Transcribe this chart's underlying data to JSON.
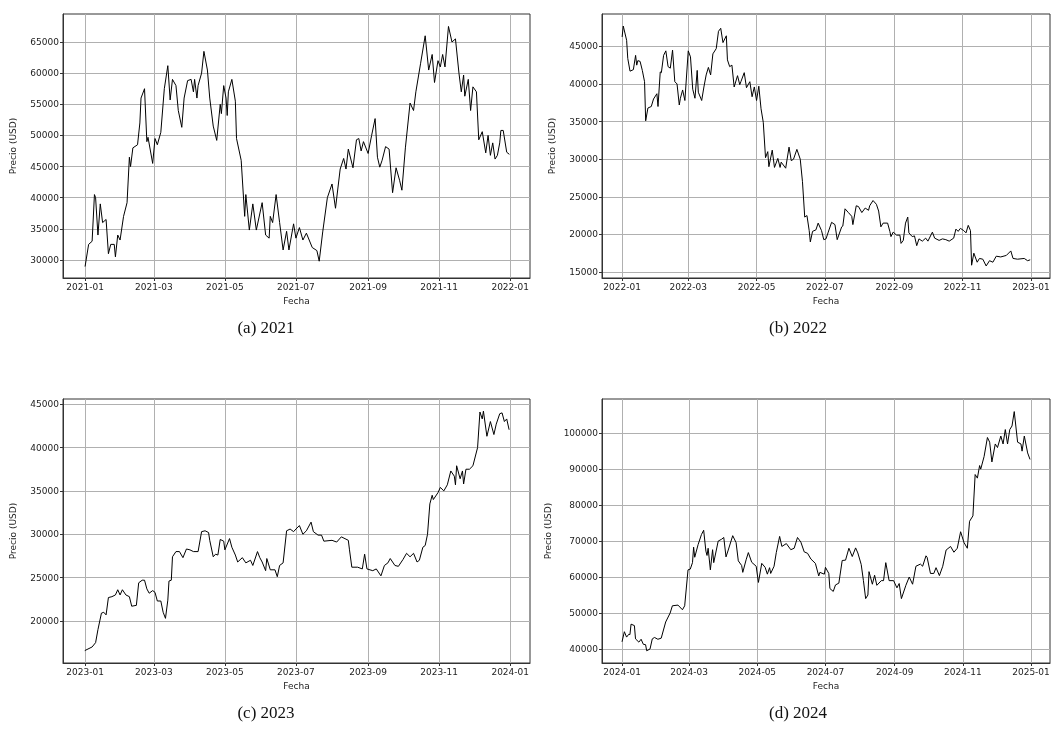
{
  "chart_data": [
    {
      "type": "line",
      "title": "(a) 2021",
      "xlabel": "Fecha",
      "ylabel": "Precio (USD)",
      "grid": true,
      "xlim": [
        "2020-12-13",
        "2022-01-18"
      ],
      "xticks": [
        "2021-01",
        "2021-03",
        "2021-05",
        "2021-07",
        "2021-09",
        "2021-11",
        "2022-01"
      ],
      "ylim": [
        27100,
        69500
      ],
      "yticks": [
        30000,
        35000,
        40000,
        45000,
        50000,
        55000,
        60000,
        65000
      ],
      "series": [
        {
          "color": "#000000",
          "x": [
            "2021-01-01",
            "2021-01-04",
            "2021-01-07",
            "2021-01-09",
            "2021-01-10",
            "2021-01-12",
            "2021-01-14",
            "2021-01-16",
            "2021-01-19",
            "2021-01-21",
            "2021-01-23",
            "2021-01-26",
            "2021-01-27",
            "2021-01-29",
            "2021-01-31",
            "2021-02-03",
            "2021-02-06",
            "2021-02-08",
            "2021-02-09",
            "2021-02-11",
            "2021-02-15",
            "2021-02-17",
            "2021-02-18",
            "2021-02-21",
            "2021-02-23",
            "2021-02-24",
            "2021-02-28",
            "2021-03-02",
            "2021-03-04",
            "2021-03-07",
            "2021-03-10",
            "2021-03-13",
            "2021-03-15",
            "2021-03-17",
            "2021-03-20",
            "2021-03-22",
            "2021-03-25",
            "2021-03-27",
            "2021-03-30",
            "2021-04-02",
            "2021-04-04",
            "2021-04-05",
            "2021-04-07",
            "2021-04-08",
            "2021-04-11",
            "2021-04-13",
            "2021-04-16",
            "2021-04-18",
            "2021-04-21",
            "2021-04-24",
            "2021-04-27",
            "2021-04-28",
            "2021-04-30",
            "2021-05-02",
            "2021-05-03",
            "2021-05-04",
            "2021-05-07",
            "2021-05-10",
            "2021-05-11",
            "2021-05-15",
            "2021-05-18",
            "2021-05-19",
            "2021-05-22",
            "2021-05-25",
            "2021-05-28",
            "2021-06-02",
            "2021-06-05",
            "2021-06-08",
            "2021-06-09",
            "2021-06-11",
            "2021-06-14",
            "2021-06-17",
            "2021-06-20",
            "2021-06-23",
            "2021-06-25",
            "2021-06-29",
            "2021-07-01",
            "2021-07-04",
            "2021-07-07",
            "2021-07-10",
            "2021-07-15",
            "2021-07-19",
            "2021-07-21",
            "2021-07-24",
            "2021-07-28",
            "2021-08-01",
            "2021-08-04",
            "2021-08-08",
            "2021-08-11",
            "2021-08-13",
            "2021-08-15",
            "2021-08-19",
            "2021-08-22",
            "2021-08-24",
            "2021-08-26",
            "2021-08-28",
            "2021-09-01",
            "2021-09-04",
            "2021-09-07",
            "2021-09-09",
            "2021-09-11",
            "2021-09-13",
            "2021-09-16",
            "2021-09-19",
            "2021-09-22",
            "2021-09-25",
            "2021-09-28",
            "2021-09-30",
            "2021-10-03",
            "2021-10-07",
            "2021-10-10",
            "2021-10-12",
            "2021-10-16",
            "2021-10-20",
            "2021-10-23",
            "2021-10-26",
            "2021-10-28",
            "2021-10-31",
            "2021-11-02",
            "2021-11-04",
            "2021-11-06",
            "2021-11-09",
            "2021-11-12",
            "2021-11-15",
            "2021-11-18",
            "2021-11-20",
            "2021-11-22",
            "2021-11-23",
            "2021-11-26",
            "2021-11-28",
            "2021-11-30",
            "2021-12-03",
            "2021-12-05",
            "2021-12-08",
            "2021-12-11",
            "2021-12-13",
            "2021-12-15",
            "2021-12-17",
            "2021-12-19",
            "2021-12-21",
            "2021-12-23",
            "2021-12-24",
            "2021-12-26",
            "2021-12-29",
            "2021-12-31"
          ],
          "values": [
            29000,
            32500,
            33000,
            40500,
            40000,
            34000,
            39000,
            36000,
            36500,
            31000,
            32500,
            32500,
            30500,
            34000,
            33200,
            37000,
            39200,
            46500,
            45000,
            48000,
            48500,
            52000,
            56000,
            57500,
            49000,
            49700,
            45500,
            49500,
            48500,
            50500,
            57500,
            61200,
            55700,
            59000,
            58000,
            54000,
            51300,
            56000,
            58800,
            59000,
            57000,
            59000,
            56000,
            58000,
            60000,
            63500,
            60500,
            56000,
            51500,
            49200,
            55000,
            53500,
            58000,
            56000,
            53200,
            57000,
            59000,
            55500,
            49500,
            46000,
            37000,
            40500,
            34800,
            39000,
            34800,
            39200,
            34000,
            33500,
            37000,
            36000,
            40500,
            36000,
            31600,
            34600,
            31600,
            35800,
            33500,
            35200,
            33200,
            34300,
            32000,
            31500,
            29800,
            34500,
            40000,
            42200,
            38300,
            44600,
            46300,
            44600,
            47800,
            44800,
            49300,
            49500,
            47500,
            49000,
            47100,
            50000,
            52700,
            46500,
            44900,
            46000,
            48200,
            47800,
            40800,
            44800,
            42800,
            41200,
            48000,
            55200,
            54000,
            57000,
            61500,
            66000,
            60500,
            63000,
            58500,
            62000,
            61000,
            63000,
            61000,
            67500,
            65000,
            65500,
            60000,
            57000,
            59700,
            56300,
            59000,
            54000,
            57800,
            57000,
            49300,
            50600,
            47200,
            50000,
            46800,
            48800,
            46200,
            46800,
            48800,
            50800,
            50800,
            47300,
            47000
          ]
        }
      ]
    },
    {
      "type": "line",
      "title": "(b) 2022",
      "xlabel": "Fecha",
      "ylabel": "Precio (USD)",
      "grid": true,
      "xlim": [
        "2021-12-14",
        "2023-01-18"
      ],
      "xticks": [
        "2022-01",
        "2022-03",
        "2022-05",
        "2022-07",
        "2022-09",
        "2022-11",
        "2023-01"
      ],
      "ylim": [
        14200,
        49300
      ],
      "yticks": [
        15000,
        20000,
        25000,
        30000,
        35000,
        40000,
        45000
      ],
      "series": [
        {
          "color": "#000000",
          "x": [
            "2022-01-01",
            "2022-01-02",
            "2022-01-05",
            "2022-01-06",
            "2022-01-08",
            "2022-01-11",
            "2022-01-13",
            "2022-01-14",
            "2022-01-15",
            "2022-01-17",
            "2022-01-19",
            "2022-01-21",
            "2022-01-22",
            "2022-01-24",
            "2022-01-27",
            "2022-01-29",
            "2022-02-01",
            "2022-02-02",
            "2022-02-04",
            "2022-02-05",
            "2022-02-07",
            "2022-02-09",
            "2022-02-11",
            "2022-02-13",
            "2022-02-15",
            "2022-02-17",
            "2022-02-19",
            "2022-02-21",
            "2022-02-22",
            "2022-02-24",
            "2022-02-26",
            "2022-03-01",
            "2022-03-03",
            "2022-03-05",
            "2022-03-07",
            "2022-03-09",
            "2022-03-10",
            "2022-03-13",
            "2022-03-15",
            "2022-03-17",
            "2022-03-19",
            "2022-03-21",
            "2022-03-23",
            "2022-03-26",
            "2022-03-28",
            "2022-03-30",
            "2022-04-01",
            "2022-04-04",
            "2022-04-05",
            "2022-04-07",
            "2022-04-09",
            "2022-04-11",
            "2022-04-14",
            "2022-04-16",
            "2022-04-17",
            "2022-04-20",
            "2022-04-22",
            "2022-04-25",
            "2022-04-27",
            "2022-04-29",
            "2022-05-01",
            "2022-05-03",
            "2022-05-05",
            "2022-05-07",
            "2022-05-09",
            "2022-05-11",
            "2022-05-12",
            "2022-05-15",
            "2022-05-17",
            "2022-05-20",
            "2022-05-22",
            "2022-05-23",
            "2022-05-27",
            "2022-05-30",
            "2022-06-01",
            "2022-06-03",
            "2022-06-06",
            "2022-06-09",
            "2022-06-11",
            "2022-06-13",
            "2022-06-15",
            "2022-06-17",
            "2022-06-18",
            "2022-06-20",
            "2022-06-23",
            "2022-06-25",
            "2022-06-28",
            "2022-06-30",
            "2022-07-02",
            "2022-07-04",
            "2022-07-07",
            "2022-07-10",
            "2022-07-12",
            "2022-07-16",
            "2022-07-17",
            "2022-07-19",
            "2022-07-22",
            "2022-07-25",
            "2022-07-26",
            "2022-07-29",
            "2022-07-31",
            "2022-08-03",
            "2022-08-06",
            "2022-08-09",
            "2022-08-10",
            "2022-08-13",
            "2022-08-16",
            "2022-08-18",
            "2022-08-20",
            "2022-08-22",
            "2022-08-26",
            "2022-08-28",
            "2022-08-29",
            "2022-08-31",
            "2022-09-03",
            "2022-09-06",
            "2022-09-07",
            "2022-09-09",
            "2022-09-11",
            "2022-09-13",
            "2022-09-14",
            "2022-09-17",
            "2022-09-19",
            "2022-09-21",
            "2022-09-23",
            "2022-09-26",
            "2022-09-29",
            "2022-10-01",
            "2022-10-05",
            "2022-10-07",
            "2022-10-11",
            "2022-10-14",
            "2022-10-17",
            "2022-10-20",
            "2022-10-24",
            "2022-10-26",
            "2022-10-28",
            "2022-10-30",
            "2022-11-02",
            "2022-11-04",
            "2022-11-06",
            "2022-11-08",
            "2022-11-09",
            "2022-11-11",
            "2022-11-14",
            "2022-11-16",
            "2022-11-19",
            "2022-11-22",
            "2022-11-25",
            "2022-11-28",
            "2022-12-01",
            "2022-12-05",
            "2022-12-10",
            "2022-12-14",
            "2022-12-16",
            "2022-12-20",
            "2022-12-26",
            "2022-12-29",
            "2022-12-31"
          ],
          "values": [
            46300,
            47700,
            45800,
            43400,
            41700,
            41900,
            43800,
            42500,
            43100,
            43000,
            41800,
            40300,
            35100,
            36800,
            37000,
            38000,
            38700,
            37000,
            41600,
            41500,
            43800,
            44400,
            42300,
            42100,
            44500,
            40300,
            40000,
            37200,
            38100,
            39200,
            37800,
            44400,
            43600,
            39300,
            38100,
            41800,
            38900,
            37800,
            39600,
            41200,
            42200,
            41200,
            44000,
            44700,
            47000,
            47400,
            45500,
            46400,
            43200,
            42300,
            42500,
            39600,
            41100,
            39900,
            40300,
            41500,
            39500,
            40300,
            38300,
            39600,
            37800,
            39700,
            36700,
            34900,
            30200,
            31000,
            29000,
            31200,
            28900,
            30100,
            28900,
            29600,
            28800,
            31600,
            29800,
            30000,
            31300,
            30000,
            27000,
            22300,
            22500,
            20500,
            19000,
            20400,
            20600,
            21500,
            20500,
            19300,
            19400,
            20300,
            21600,
            21300,
            19300,
            21000,
            21100,
            23400,
            22900,
            22400,
            21300,
            23800,
            23700,
            22900,
            23500,
            23200,
            23800,
            24500,
            24000,
            23100,
            21000,
            21500,
            21500,
            20400,
            19700,
            20300,
            19900,
            19900,
            18800,
            19200,
            21500,
            22300,
            20200,
            19700,
            19800,
            18500,
            19400,
            19100,
            19500,
            19100,
            20300,
            19500,
            19200,
            19400,
            19300,
            19100,
            19500,
            20700,
            20400,
            20800,
            20500,
            20200,
            21200,
            20500,
            15900,
            17500,
            16300,
            16800,
            16700,
            15800,
            16500,
            16300,
            17100,
            17000,
            17200,
            17800,
            16800,
            16700,
            16800,
            16500,
            16600
          ]
        }
      ]
    },
    {
      "type": "line",
      "title": "(c) 2023",
      "xlabel": "Fecha",
      "ylabel": "Precio (USD)",
      "grid": true,
      "xlim": [
        "2022-12-13",
        "2024-01-18"
      ],
      "xticks": [
        "2023-01",
        "2023-03",
        "2023-05",
        "2023-07",
        "2023-09",
        "2023-11",
        "2024-01"
      ],
      "ylim": [
        15150,
        45600
      ],
      "yticks": [
        20000,
        25000,
        30000,
        35000,
        40000,
        45000
      ],
      "series": [
        {
          "color": "#000000",
          "x": [
            "2023-01-01",
            "2023-01-07",
            "2023-01-10",
            "2023-01-12",
            "2023-01-15",
            "2023-01-17",
            "2023-01-19",
            "2023-01-21",
            "2023-01-24",
            "2023-01-27",
            "2023-01-29",
            "2023-01-31",
            "2023-02-02",
            "2023-02-05",
            "2023-02-08",
            "2023-02-10",
            "2023-02-14",
            "2023-02-16",
            "2023-02-19",
            "2023-02-21",
            "2023-02-23",
            "2023-02-25",
            "2023-02-28",
            "2023-03-02",
            "2023-03-04",
            "2023-03-07",
            "2023-03-09",
            "2023-03-11",
            "2023-03-13",
            "2023-03-14",
            "2023-03-16",
            "2023-03-17",
            "2023-03-20",
            "2023-03-23",
            "2023-03-26",
            "2023-03-29",
            "2023-04-01",
            "2023-04-04",
            "2023-04-08",
            "2023-04-11",
            "2023-04-14",
            "2023-04-17",
            "2023-04-18",
            "2023-04-21",
            "2023-04-23",
            "2023-04-25",
            "2023-04-27",
            "2023-04-30",
            "2023-05-01",
            "2023-05-05",
            "2023-05-07",
            "2023-05-10",
            "2023-05-12",
            "2023-05-16",
            "2023-05-19",
            "2023-05-23",
            "2023-05-25",
            "2023-05-29",
            "2023-05-31",
            "2023-06-02",
            "2023-06-05",
            "2023-06-06",
            "2023-06-09",
            "2023-06-13",
            "2023-06-15",
            "2023-06-17",
            "2023-06-20",
            "2023-06-23",
            "2023-06-26",
            "2023-06-29",
            "2023-07-01",
            "2023-07-04",
            "2023-07-07",
            "2023-07-10",
            "2023-07-14",
            "2023-07-16",
            "2023-07-20",
            "2023-07-23",
            "2023-07-25",
            "2023-08-01",
            "2023-08-05",
            "2023-08-09",
            "2023-08-15",
            "2023-08-16",
            "2023-08-18",
            "2023-08-23",
            "2023-08-27",
            "2023-08-29",
            "2023-08-31",
            "2023-09-05",
            "2023-09-08",
            "2023-09-12",
            "2023-09-15",
            "2023-09-18",
            "2023-09-20",
            "2023-09-24",
            "2023-09-27",
            "2023-10-01",
            "2023-10-04",
            "2023-10-07",
            "2023-10-10",
            "2023-10-13",
            "2023-10-15",
            "2023-10-18",
            "2023-10-20",
            "2023-10-22",
            "2023-10-24",
            "2023-10-26",
            "2023-10-27",
            "2023-10-31",
            "2023-11-02",
            "2023-11-05",
            "2023-11-08",
            "2023-11-11",
            "2023-11-14",
            "2023-11-15",
            "2023-11-16",
            "2023-11-19",
            "2023-11-21",
            "2023-11-22",
            "2023-11-24",
            "2023-11-27",
            "2023-11-30",
            "2023-12-04",
            "2023-12-06",
            "2023-12-08",
            "2023-12-09",
            "2023-12-12",
            "2023-12-15",
            "2023-12-18",
            "2023-12-20",
            "2023-12-23",
            "2023-12-25",
            "2023-12-27",
            "2023-12-29",
            "2023-12-31"
          ],
          "values": [
            16600,
            17000,
            17500,
            19000,
            20900,
            21000,
            20700,
            22700,
            22800,
            23000,
            23600,
            23000,
            23600,
            23000,
            22800,
            21700,
            21800,
            24400,
            24700,
            24700,
            23700,
            23200,
            23500,
            23300,
            22300,
            22300,
            21000,
            20300,
            22400,
            24600,
            24700,
            27400,
            28000,
            28000,
            27300,
            28300,
            28200,
            28000,
            28000,
            30300,
            30400,
            30200,
            29300,
            27400,
            27700,
            27600,
            29400,
            29200,
            28200,
            29500,
            28500,
            27600,
            26800,
            27300,
            26700,
            27000,
            26400,
            28000,
            27300,
            26800,
            25800,
            27200,
            25900,
            25900,
            25100,
            26400,
            26700,
            30400,
            30600,
            30300,
            30600,
            31000,
            30000,
            30400,
            31400,
            30300,
            29900,
            29900,
            29200,
            29300,
            29100,
            29700,
            29300,
            28200,
            26200,
            26200,
            26000,
            27700,
            26000,
            25800,
            26000,
            25200,
            26400,
            26700,
            27200,
            26400,
            26300,
            27100,
            27800,
            27400,
            27800,
            26800,
            27000,
            28500,
            28700,
            30000,
            33500,
            34500,
            34000,
            34800,
            35400,
            35000,
            35700,
            37300,
            36700,
            35700,
            37900,
            36400,
            37300,
            35800,
            37500,
            37500,
            37900,
            40000,
            44100,
            43300,
            44200,
            41300,
            43000,
            41500,
            42700,
            43900,
            44000,
            43000,
            43300,
            42100
          ]
        }
      ]
    },
    {
      "type": "line",
      "title": "(d) 2024",
      "xlabel": "Fecha",
      "ylabel": "Precio (USD)",
      "grid": true,
      "xlim": [
        "2023-12-14",
        "2025-01-18"
      ],
      "xticks": [
        "2024-01",
        "2024-03",
        "2024-05",
        "2024-07",
        "2024-09",
        "2024-11",
        "2025-01"
      ],
      "ylim": [
        36100,
        109500
      ],
      "yticks": [
        40000,
        50000,
        60000,
        70000,
        80000,
        90000,
        100000
      ],
      "series": [
        {
          "color": "#000000",
          "x": [
            "2024-01-01",
            "2024-01-03",
            "2024-01-05",
            "2024-01-07",
            "2024-01-08",
            "2024-01-09",
            "2024-01-12",
            "2024-01-13",
            "2024-01-16",
            "2024-01-18",
            "2024-01-20",
            "2024-01-22",
            "2024-01-23",
            "2024-01-26",
            "2024-01-28",
            "2024-01-30",
            "2024-02-02",
            "2024-02-05",
            "2024-02-09",
            "2024-02-13",
            "2024-02-15",
            "2024-02-20",
            "2024-02-24",
            "2024-02-26",
            "2024-02-29",
            "2024-03-02",
            "2024-03-04",
            "2024-03-05",
            "2024-03-06",
            "2024-03-09",
            "2024-03-12",
            "2024-03-14",
            "2024-03-16",
            "2024-03-17",
            "2024-03-18",
            "2024-03-20",
            "2024-03-22",
            "2024-03-23",
            "2024-03-27",
            "2024-03-30",
            "2024-04-01",
            "2024-04-03",
            "2024-04-05",
            "2024-04-09",
            "2024-04-12",
            "2024-04-14",
            "2024-04-17",
            "2024-04-18",
            "2024-04-21",
            "2024-04-23",
            "2024-04-26",
            "2024-04-30",
            "2024-05-02",
            "2024-05-05",
            "2024-05-08",
            "2024-05-10",
            "2024-05-12",
            "2024-05-13",
            "2024-05-16",
            "2024-05-18",
            "2024-05-21",
            "2024-05-23",
            "2024-05-27",
            "2024-05-31",
            "2024-06-03",
            "2024-06-06",
            "2024-06-09",
            "2024-06-12",
            "2024-06-15",
            "2024-06-18",
            "2024-06-22",
            "2024-06-25",
            "2024-06-26",
            "2024-06-30",
            "2024-07-01",
            "2024-07-04",
            "2024-07-05",
            "2024-07-08",
            "2024-07-10",
            "2024-07-13",
            "2024-07-16",
            "2024-07-19",
            "2024-07-22",
            "2024-07-25",
            "2024-07-28",
            "2024-07-30",
            "2024-08-02",
            "2024-08-04",
            "2024-08-06",
            "2024-08-08",
            "2024-08-09",
            "2024-08-12",
            "2024-08-14",
            "2024-08-16",
            "2024-08-20",
            "2024-08-22",
            "2024-08-24",
            "2024-08-27",
            "2024-08-31",
            "2024-09-03",
            "2024-09-05",
            "2024-09-07",
            "2024-09-11",
            "2024-09-14",
            "2024-09-17",
            "2024-09-20",
            "2024-09-24",
            "2024-09-26",
            "2024-09-29",
            "2024-09-30",
            "2024-10-03",
            "2024-10-06",
            "2024-10-08",
            "2024-10-11",
            "2024-10-14",
            "2024-10-17",
            "2024-10-21",
            "2024-10-24",
            "2024-10-27",
            "2024-10-30",
            "2024-11-02",
            "2024-11-05",
            "2024-11-07",
            "2024-11-10",
            "2024-11-12",
            "2024-11-14",
            "2024-11-16",
            "2024-11-17",
            "2024-11-20",
            "2024-11-23",
            "2024-11-25",
            "2024-11-27",
            "2024-11-30",
            "2024-12-02",
            "2024-12-05",
            "2024-12-07",
            "2024-12-09",
            "2024-12-11",
            "2024-12-13",
            "2024-12-15",
            "2024-12-17",
            "2024-12-20",
            "2024-12-23",
            "2024-12-24",
            "2024-12-26",
            "2024-12-29",
            "2024-12-31"
          ],
          "values": [
            42100,
            44800,
            43300,
            44100,
            44000,
            46900,
            46500,
            42800,
            41900,
            42700,
            41300,
            41200,
            39500,
            40000,
            42800,
            43200,
            42700,
            43000,
            47500,
            50000,
            52000,
            52200,
            50900,
            52000,
            62000,
            62200,
            64000,
            68300,
            65500,
            69000,
            71800,
            73000,
            67200,
            66000,
            68000,
            62000,
            67600,
            64000,
            70000,
            70500,
            71000,
            65600,
            67500,
            71500,
            69600,
            64500,
            63200,
            61300,
            64800,
            66800,
            64100,
            63000,
            58500,
            63800,
            62700,
            60800,
            62600,
            61000,
            63000,
            66800,
            71300,
            68500,
            69300,
            67600,
            68000,
            71000,
            69700,
            67000,
            66600,
            65000,
            63800,
            60300,
            61300,
            60800,
            62700,
            61000,
            56800,
            56000,
            57800,
            58300,
            64600,
            64700,
            68000,
            65700,
            68100,
            66700,
            63500,
            59000,
            54000,
            55000,
            61500,
            58000,
            60500,
            57700,
            59000,
            59000,
            64000,
            59000,
            59000,
            57000,
            58200,
            54000,
            57700,
            60000,
            58000,
            63000,
            63600,
            63000,
            65900,
            65500,
            61000,
            61000,
            62600,
            60400,
            63000,
            67500,
            68500,
            66900,
            68000,
            72600,
            69600,
            68000,
            75500,
            77000,
            88500,
            87500,
            91000,
            90000,
            93500,
            98800,
            97500,
            92000,
            97000,
            96000,
            99200,
            97000,
            101000,
            97000,
            101000,
            102000,
            106000,
            97500,
            97000,
            95000,
            99200,
            94500,
            92800
          ]
        }
      ]
    }
  ]
}
